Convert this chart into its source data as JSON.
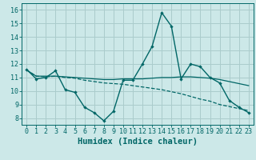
{
  "xlabel": "Humidex (Indice chaleur)",
  "xlim": [
    -0.5,
    23.5
  ],
  "ylim": [
    7.5,
    16.5
  ],
  "yticks": [
    8,
    9,
    10,
    11,
    12,
    13,
    14,
    15,
    16
  ],
  "xticks": [
    0,
    1,
    2,
    3,
    4,
    5,
    6,
    7,
    8,
    9,
    10,
    11,
    12,
    13,
    14,
    15,
    16,
    17,
    18,
    19,
    20,
    21,
    22,
    23
  ],
  "background_color": "#cce8e8",
  "grid_color": "#aacccc",
  "line_color": "#006666",
  "curve1_x": [
    0,
    1,
    2,
    3,
    4,
    5,
    6,
    7,
    8,
    9,
    10,
    11,
    12,
    13,
    14,
    15,
    16,
    17,
    18,
    19,
    20,
    21,
    22,
    23
  ],
  "curve1_y": [
    11.6,
    10.9,
    11.0,
    11.5,
    10.1,
    9.9,
    8.8,
    8.4,
    7.8,
    8.5,
    10.8,
    10.8,
    12.0,
    13.3,
    15.8,
    14.8,
    10.9,
    12.0,
    11.8,
    11.0,
    10.6,
    9.3,
    8.8,
    8.4
  ],
  "curve2_x": [
    0,
    1,
    2,
    3,
    4,
    5,
    6,
    7,
    8,
    9,
    10,
    11,
    12,
    13,
    14,
    15,
    16,
    17,
    18,
    19,
    20,
    21,
    22,
    23
  ],
  "curve2_y": [
    11.55,
    11.1,
    11.1,
    11.1,
    11.05,
    11.0,
    10.95,
    10.9,
    10.85,
    10.85,
    10.9,
    10.9,
    10.9,
    10.95,
    11.0,
    11.0,
    11.05,
    11.05,
    11.0,
    10.95,
    10.85,
    10.7,
    10.55,
    10.4
  ],
  "curve3_x": [
    0,
    1,
    2,
    3,
    4,
    5,
    6,
    7,
    8,
    9,
    10,
    11,
    12,
    13,
    14,
    15,
    16,
    17,
    18,
    19,
    20,
    21,
    22,
    23
  ],
  "curve3_y": [
    11.55,
    11.1,
    11.05,
    11.1,
    11.0,
    10.95,
    10.8,
    10.7,
    10.6,
    10.55,
    10.5,
    10.4,
    10.3,
    10.2,
    10.1,
    9.95,
    9.8,
    9.6,
    9.4,
    9.25,
    9.0,
    8.85,
    8.7,
    8.55
  ],
  "tick_fontsize": 6,
  "label_fontsize": 7.5
}
